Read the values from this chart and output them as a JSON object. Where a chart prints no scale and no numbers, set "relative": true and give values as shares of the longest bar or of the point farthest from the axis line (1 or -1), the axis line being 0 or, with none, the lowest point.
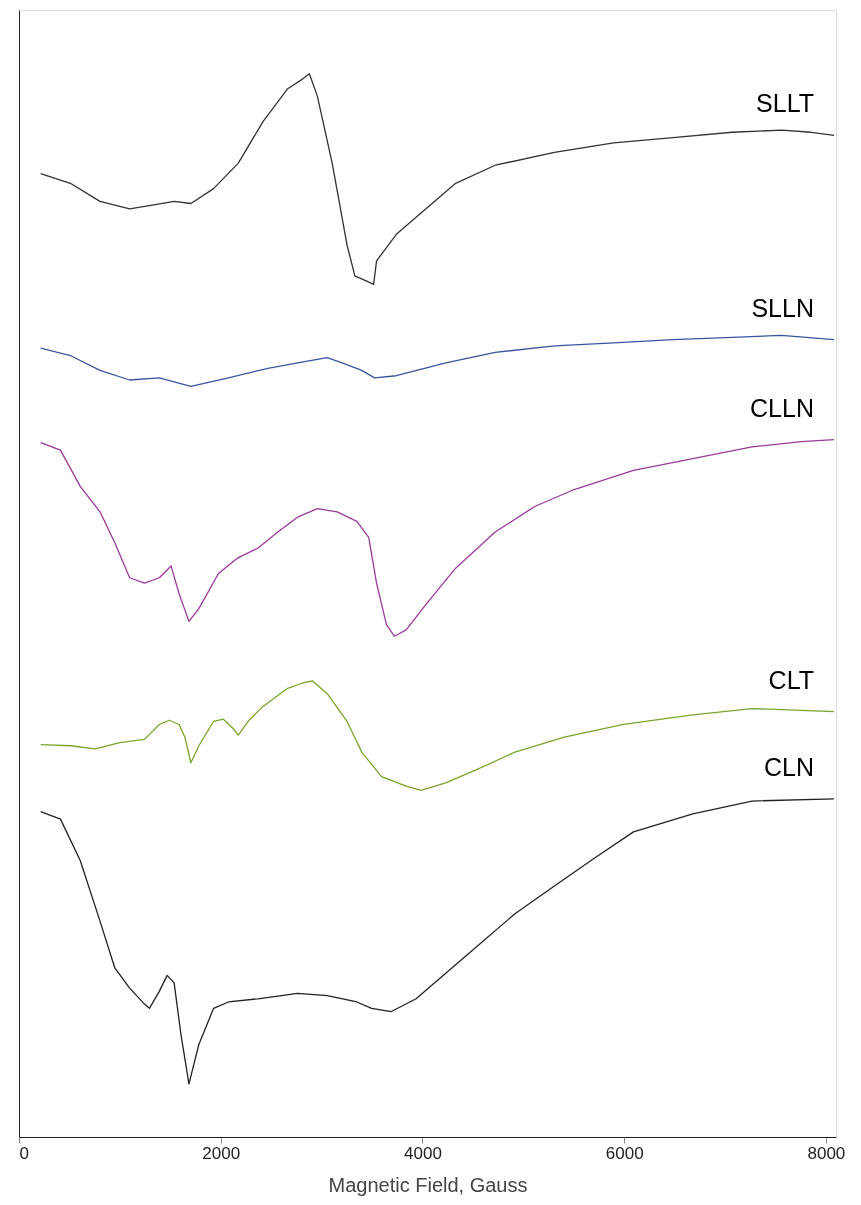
{
  "chart_data": {
    "type": "line",
    "relative": true,
    "xlabel": "Magnetic Field, Gauss",
    "xlim": [
      0,
      8100
    ],
    "xticks": [
      0,
      2000,
      4000,
      6000,
      8000
    ],
    "grid": false,
    "legend": false,
    "marker": "none",
    "line_style": "solid",
    "series": [
      {
        "name": "SLLT",
        "color": "#333333",
        "x": [
          215,
          509,
          803,
          1097,
          1293,
          1538,
          1704,
          1929,
          2174,
          2419,
          2664,
          2811,
          2879,
          2958,
          3105,
          3252,
          3330,
          3447,
          3516,
          3545,
          3741,
          4035,
          4329,
          4721,
          5308,
          5896,
          6484,
          7071,
          7561,
          7855,
          8080
        ],
        "values": [
          0.906,
          0.897,
          0.88,
          0.873,
          0.876,
          0.88,
          0.878,
          0.892,
          0.916,
          0.955,
          0.986,
          0.995,
          1.0,
          0.979,
          0.916,
          0.839,
          0.81,
          0.805,
          0.802,
          0.824,
          0.849,
          0.873,
          0.897,
          0.914,
          0.926,
          0.935,
          0.94,
          0.945,
          0.947,
          0.945,
          0.942
        ]
      },
      {
        "name": "SLLN",
        "color": "#3a55a0",
        "x": [
          215,
          509,
          803,
          1097,
          1391,
          1704,
          2076,
          2468,
          2762,
          3056,
          3203,
          3398,
          3526,
          3741,
          4231,
          4721,
          5308,
          5896,
          6484,
          7071,
          7561,
          8080
        ],
        "values": [
          0.742,
          0.735,
          0.721,
          0.712,
          0.714,
          0.706,
          0.714,
          0.723,
          0.728,
          0.733,
          0.728,
          0.721,
          0.714,
          0.716,
          0.728,
          0.738,
          0.744,
          0.747,
          0.75,
          0.752,
          0.754,
          0.75
        ]
      },
      {
        "name": "CLLN",
        "color": "#9b3a9b",
        "x": [
          215,
          411,
          607,
          803,
          950,
          1097,
          1244,
          1391,
          1508,
          1587,
          1685,
          1783,
          1978,
          2174,
          2370,
          2566,
          2762,
          2958,
          3154,
          3350,
          3467,
          3545,
          3643,
          3722,
          3839,
          4035,
          4329,
          4721,
          5113,
          5504,
          6092,
          6680,
          7267,
          7757,
          8080
        ],
        "values": [
          0.653,
          0.646,
          0.612,
          0.588,
          0.559,
          0.526,
          0.521,
          0.526,
          0.537,
          0.511,
          0.485,
          0.497,
          0.53,
          0.545,
          0.554,
          0.569,
          0.583,
          0.591,
          0.588,
          0.579,
          0.564,
          0.521,
          0.482,
          0.471,
          0.477,
          0.501,
          0.535,
          0.569,
          0.593,
          0.609,
          0.627,
          0.638,
          0.649,
          0.654,
          0.656
        ]
      },
      {
        "name": "CLT",
        "color": "#7aa52a",
        "x": [
          215,
          509,
          754,
          999,
          1244,
          1391,
          1489,
          1587,
          1645,
          1704,
          1783,
          1929,
          2027,
          2125,
          2174,
          2272,
          2419,
          2664,
          2811,
          2909,
          3056,
          3252,
          3398,
          3594,
          3839,
          3986,
          4231,
          4525,
          4917,
          5406,
          5994,
          6680,
          7267,
          8080
        ],
        "values": [
          0.369,
          0.368,
          0.365,
          0.371,
          0.374,
          0.388,
          0.392,
          0.388,
          0.376,
          0.352,
          0.368,
          0.391,
          0.393,
          0.384,
          0.378,
          0.391,
          0.405,
          0.422,
          0.427,
          0.429,
          0.417,
          0.391,
          0.362,
          0.339,
          0.33,
          0.326,
          0.333,
          0.345,
          0.362,
          0.376,
          0.388,
          0.397,
          0.403,
          0.4
        ]
      },
      {
        "name": "CLN",
        "color": "#222222",
        "x": [
          215,
          411,
          607,
          803,
          950,
          1097,
          1244,
          1293,
          1391,
          1469,
          1538,
          1606,
          1685,
          1783,
          1929,
          2076,
          2370,
          2762,
          3056,
          3350,
          3496,
          3692,
          3937,
          4231,
          4525,
          4917,
          5308,
          5700,
          6092,
          6680,
          7267,
          8080
        ],
        "values": [
          0.306,
          0.299,
          0.26,
          0.203,
          0.159,
          0.14,
          0.125,
          0.121,
          0.137,
          0.152,
          0.145,
          0.096,
          0.05,
          0.087,
          0.121,
          0.127,
          0.13,
          0.135,
          0.133,
          0.127,
          0.121,
          0.118,
          0.13,
          0.154,
          0.178,
          0.21,
          0.236,
          0.262,
          0.287,
          0.304,
          0.316,
          0.318
        ]
      }
    ]
  }
}
